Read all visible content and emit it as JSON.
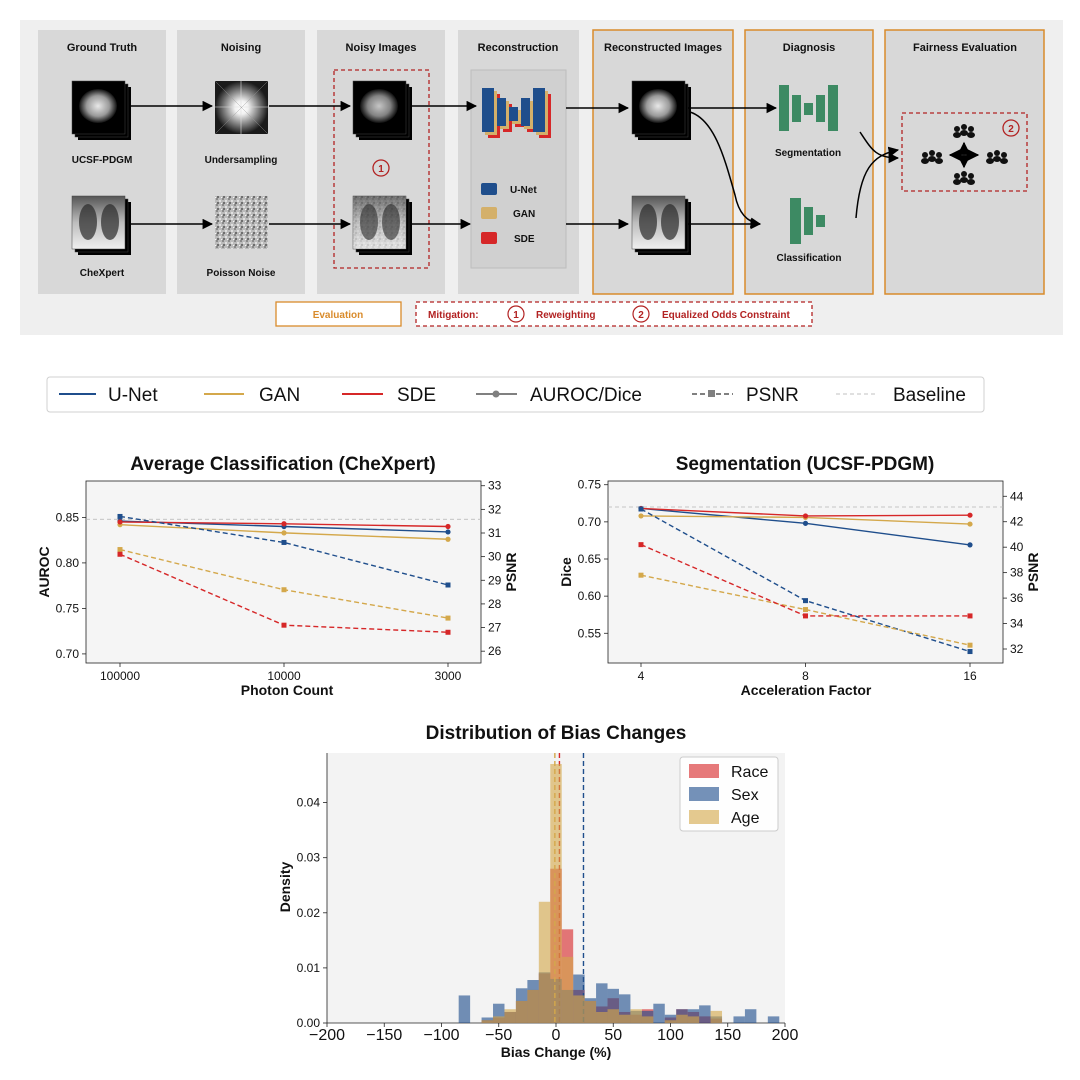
{
  "pipeline": {
    "columns": [
      {
        "title": "Ground Truth",
        "top_label": "UCSF-PDGM",
        "bottom_label": "CheXpert"
      },
      {
        "title": "Noising",
        "top_label": "Undersampling",
        "bottom_label": "Poisson Noise"
      },
      {
        "title": "Noisy Images",
        "marker": "1"
      },
      {
        "title": "Reconstruction",
        "legend": [
          {
            "name": "U-Net",
            "color": "#1f4e8c"
          },
          {
            "name": "GAN",
            "color": "#d4b06a"
          },
          {
            "name": "SDE",
            "color": "#d62728"
          }
        ]
      },
      {
        "title": "Reconstructed Images"
      },
      {
        "title": "Diagnosis",
        "top_label": "Segmentation",
        "bottom_label": "Classification"
      },
      {
        "title": "Fairness Evaluation",
        "marker": "2"
      }
    ],
    "footer": {
      "evaluation": "Evaluation",
      "mitigation": "Mitigation:",
      "m1_num": "1",
      "m1_text": "Reweighting",
      "m2_num": "2",
      "m2_text": "Equalized Odds Constraint"
    }
  },
  "legend": {
    "items": [
      {
        "name": "U-Net",
        "color": "#1f4e8c",
        "style": "solid"
      },
      {
        "name": "GAN",
        "color": "#d4a84b",
        "style": "solid"
      },
      {
        "name": "SDE",
        "color": "#d62728",
        "style": "solid"
      },
      {
        "name": "AUROC/Dice",
        "color": "#808080",
        "style": "solid-marker"
      },
      {
        "name": "PSNR",
        "color": "#808080",
        "style": "dashed-marker"
      },
      {
        "name": "Baseline",
        "color": "#c0c0c0",
        "style": "thin-dashed"
      }
    ]
  },
  "chart_data": [
    {
      "type": "line",
      "title": "Average Classification (CheXpert)",
      "xlabel": "Photon Count",
      "ylabel": "AUROC",
      "ylabel_right": "PSNR",
      "categories": [
        "100000",
        "10000",
        "3000"
      ],
      "ylim": [
        0.69,
        0.89
      ],
      "yticks": [
        0.7,
        0.75,
        0.8,
        0.85
      ],
      "ylim_right": [
        25.5,
        33.2
      ],
      "yticks_right": [
        26,
        27,
        28,
        29,
        30,
        31,
        32,
        33
      ],
      "baseline": 0.848,
      "series": [
        {
          "name": "U-Net",
          "metric": "AUROC/Dice",
          "axis": "left",
          "values": [
            0.846,
            0.84,
            0.834
          ]
        },
        {
          "name": "GAN",
          "metric": "AUROC/Dice",
          "axis": "left",
          "values": [
            0.842,
            0.833,
            0.826
          ]
        },
        {
          "name": "SDE",
          "metric": "AUROC/Dice",
          "axis": "left",
          "values": [
            0.845,
            0.843,
            0.84
          ]
        },
        {
          "name": "U-Net",
          "metric": "PSNR",
          "axis": "right",
          "values": [
            31.7,
            30.6,
            28.8
          ]
        },
        {
          "name": "GAN",
          "metric": "PSNR",
          "axis": "right",
          "values": [
            30.3,
            28.6,
            27.4
          ]
        },
        {
          "name": "SDE",
          "metric": "PSNR",
          "axis": "right",
          "values": [
            30.1,
            27.1,
            26.8
          ]
        }
      ]
    },
    {
      "type": "line",
      "title": "Segmentation (UCSF-PDGM)",
      "xlabel": "Acceleration Factor",
      "ylabel": "Dice",
      "ylabel_right": "PSNR",
      "categories": [
        "4",
        "8",
        "16"
      ],
      "ylim": [
        0.51,
        0.755
      ],
      "yticks": [
        0.55,
        0.6,
        0.65,
        0.7,
        0.75
      ],
      "ylim_right": [
        30.9,
        45.2
      ],
      "yticks_right": [
        32,
        34,
        36,
        38,
        40,
        42,
        44
      ],
      "baseline": 0.72,
      "series": [
        {
          "name": "U-Net",
          "metric": "AUROC/Dice",
          "axis": "left",
          "values": [
            0.718,
            0.698,
            0.669
          ]
        },
        {
          "name": "GAN",
          "metric": "AUROC/Dice",
          "axis": "left",
          "values": [
            0.708,
            0.706,
            0.697
          ]
        },
        {
          "name": "SDE",
          "metric": "AUROC/Dice",
          "axis": "left",
          "values": [
            0.718,
            0.708,
            0.709
          ]
        },
        {
          "name": "U-Net",
          "metric": "PSNR",
          "axis": "right",
          "values": [
            43.0,
            35.8,
            31.8
          ]
        },
        {
          "name": "GAN",
          "metric": "PSNR",
          "axis": "right",
          "values": [
            37.8,
            35.1,
            32.3
          ]
        },
        {
          "name": "SDE",
          "metric": "PSNR",
          "axis": "right",
          "values": [
            40.2,
            34.6,
            34.6
          ]
        }
      ]
    },
    {
      "type": "histogram",
      "title": "Distribution of Bias Changes",
      "xlabel": "Bias Change (%)",
      "ylabel": "Density",
      "xlim": [
        -200,
        200
      ],
      "xticks": [
        -200,
        -150,
        -100,
        -50,
        0,
        50,
        100,
        150,
        200
      ],
      "xtick_labels": [
        "−200",
        "−150",
        "−100",
        "−50",
        "0",
        "50",
        "100",
        "150",
        "200"
      ],
      "ylim": [
        0,
        0.049
      ],
      "yticks": [
        0.0,
        0.01,
        0.02,
        0.03,
        0.04
      ],
      "ytick_labels": [
        "0.00",
        "0.01",
        "0.02",
        "0.03",
        "0.04"
      ],
      "bin_width": 10,
      "legend_position": "top-right",
      "series": [
        {
          "name": "Race",
          "color": "#d62728",
          "mean_line": 3,
          "bins": [
            {
              "x": -60,
              "d": 0.0005
            },
            {
              "x": -50,
              "d": 0.001
            },
            {
              "x": -40,
              "d": 0.002
            },
            {
              "x": -30,
              "d": 0.004
            },
            {
              "x": -20,
              "d": 0.006
            },
            {
              "x": -10,
              "d": 0.009
            },
            {
              "x": 0,
              "d": 0.028
            },
            {
              "x": 10,
              "d": 0.017
            },
            {
              "x": 20,
              "d": 0.006
            },
            {
              "x": 30,
              "d": 0.004
            },
            {
              "x": 40,
              "d": 0.003
            },
            {
              "x": 50,
              "d": 0.0045
            },
            {
              "x": 60,
              "d": 0.002
            },
            {
              "x": 70,
              "d": 0.0015
            },
            {
              "x": 80,
              "d": 0.0025
            },
            {
              "x": 100,
              "d": 0.001
            },
            {
              "x": 110,
              "d": 0.0025
            },
            {
              "x": 120,
              "d": 0.002
            },
            {
              "x": 130,
              "d": 0.0012
            },
            {
              "x": 140,
              "d": 0.0008
            }
          ]
        },
        {
          "name": "Sex",
          "color": "#1f4e8c",
          "mean_line": 24,
          "bins": [
            {
              "x": -80,
              "d": 0.005
            },
            {
              "x": -60,
              "d": 0.001
            },
            {
              "x": -50,
              "d": 0.0035
            },
            {
              "x": -40,
              "d": 0.002
            },
            {
              "x": -30,
              "d": 0.0063
            },
            {
              "x": -20,
              "d": 0.0078
            },
            {
              "x": -10,
              "d": 0.0092
            },
            {
              "x": 0,
              "d": 0.008
            },
            {
              "x": 10,
              "d": 0.006
            },
            {
              "x": 20,
              "d": 0.0088
            },
            {
              "x": 30,
              "d": 0.0045
            },
            {
              "x": 40,
              "d": 0.0072
            },
            {
              "x": 50,
              "d": 0.0062
            },
            {
              "x": 60,
              "d": 0.0052
            },
            {
              "x": 70,
              "d": 0.0022
            },
            {
              "x": 80,
              "d": 0.0022
            },
            {
              "x": 90,
              "d": 0.0035
            },
            {
              "x": 100,
              "d": 0.0015
            },
            {
              "x": 110,
              "d": 0.0025
            },
            {
              "x": 120,
              "d": 0.0025
            },
            {
              "x": 130,
              "d": 0.0032
            },
            {
              "x": 140,
              "d": 0.0012
            },
            {
              "x": 160,
              "d": 0.0012
            },
            {
              "x": 170,
              "d": 0.0025
            },
            {
              "x": 190,
              "d": 0.0012
            }
          ]
        },
        {
          "name": "Age",
          "color": "#d4a84b",
          "mean_line": -1,
          "bins": [
            {
              "x": -60,
              "d": 0.0005
            },
            {
              "x": -50,
              "d": 0.0012
            },
            {
              "x": -40,
              "d": 0.0025
            },
            {
              "x": -30,
              "d": 0.004
            },
            {
              "x": -20,
              "d": 0.006
            },
            {
              "x": -10,
              "d": 0.022
            },
            {
              "x": 0,
              "d": 0.047
            },
            {
              "x": 10,
              "d": 0.012
            },
            {
              "x": 20,
              "d": 0.005
            },
            {
              "x": 30,
              "d": 0.004
            },
            {
              "x": 40,
              "d": 0.002
            },
            {
              "x": 50,
              "d": 0.0025
            },
            {
              "x": 60,
              "d": 0.0015
            },
            {
              "x": 70,
              "d": 0.0025
            },
            {
              "x": 80,
              "d": 0.0012
            },
            {
              "x": 100,
              "d": 0.0005
            },
            {
              "x": 110,
              "d": 0.0015
            },
            {
              "x": 120,
              "d": 0.0012
            },
            {
              "x": 140,
              "d": 0.0022
            }
          ]
        }
      ]
    }
  ]
}
